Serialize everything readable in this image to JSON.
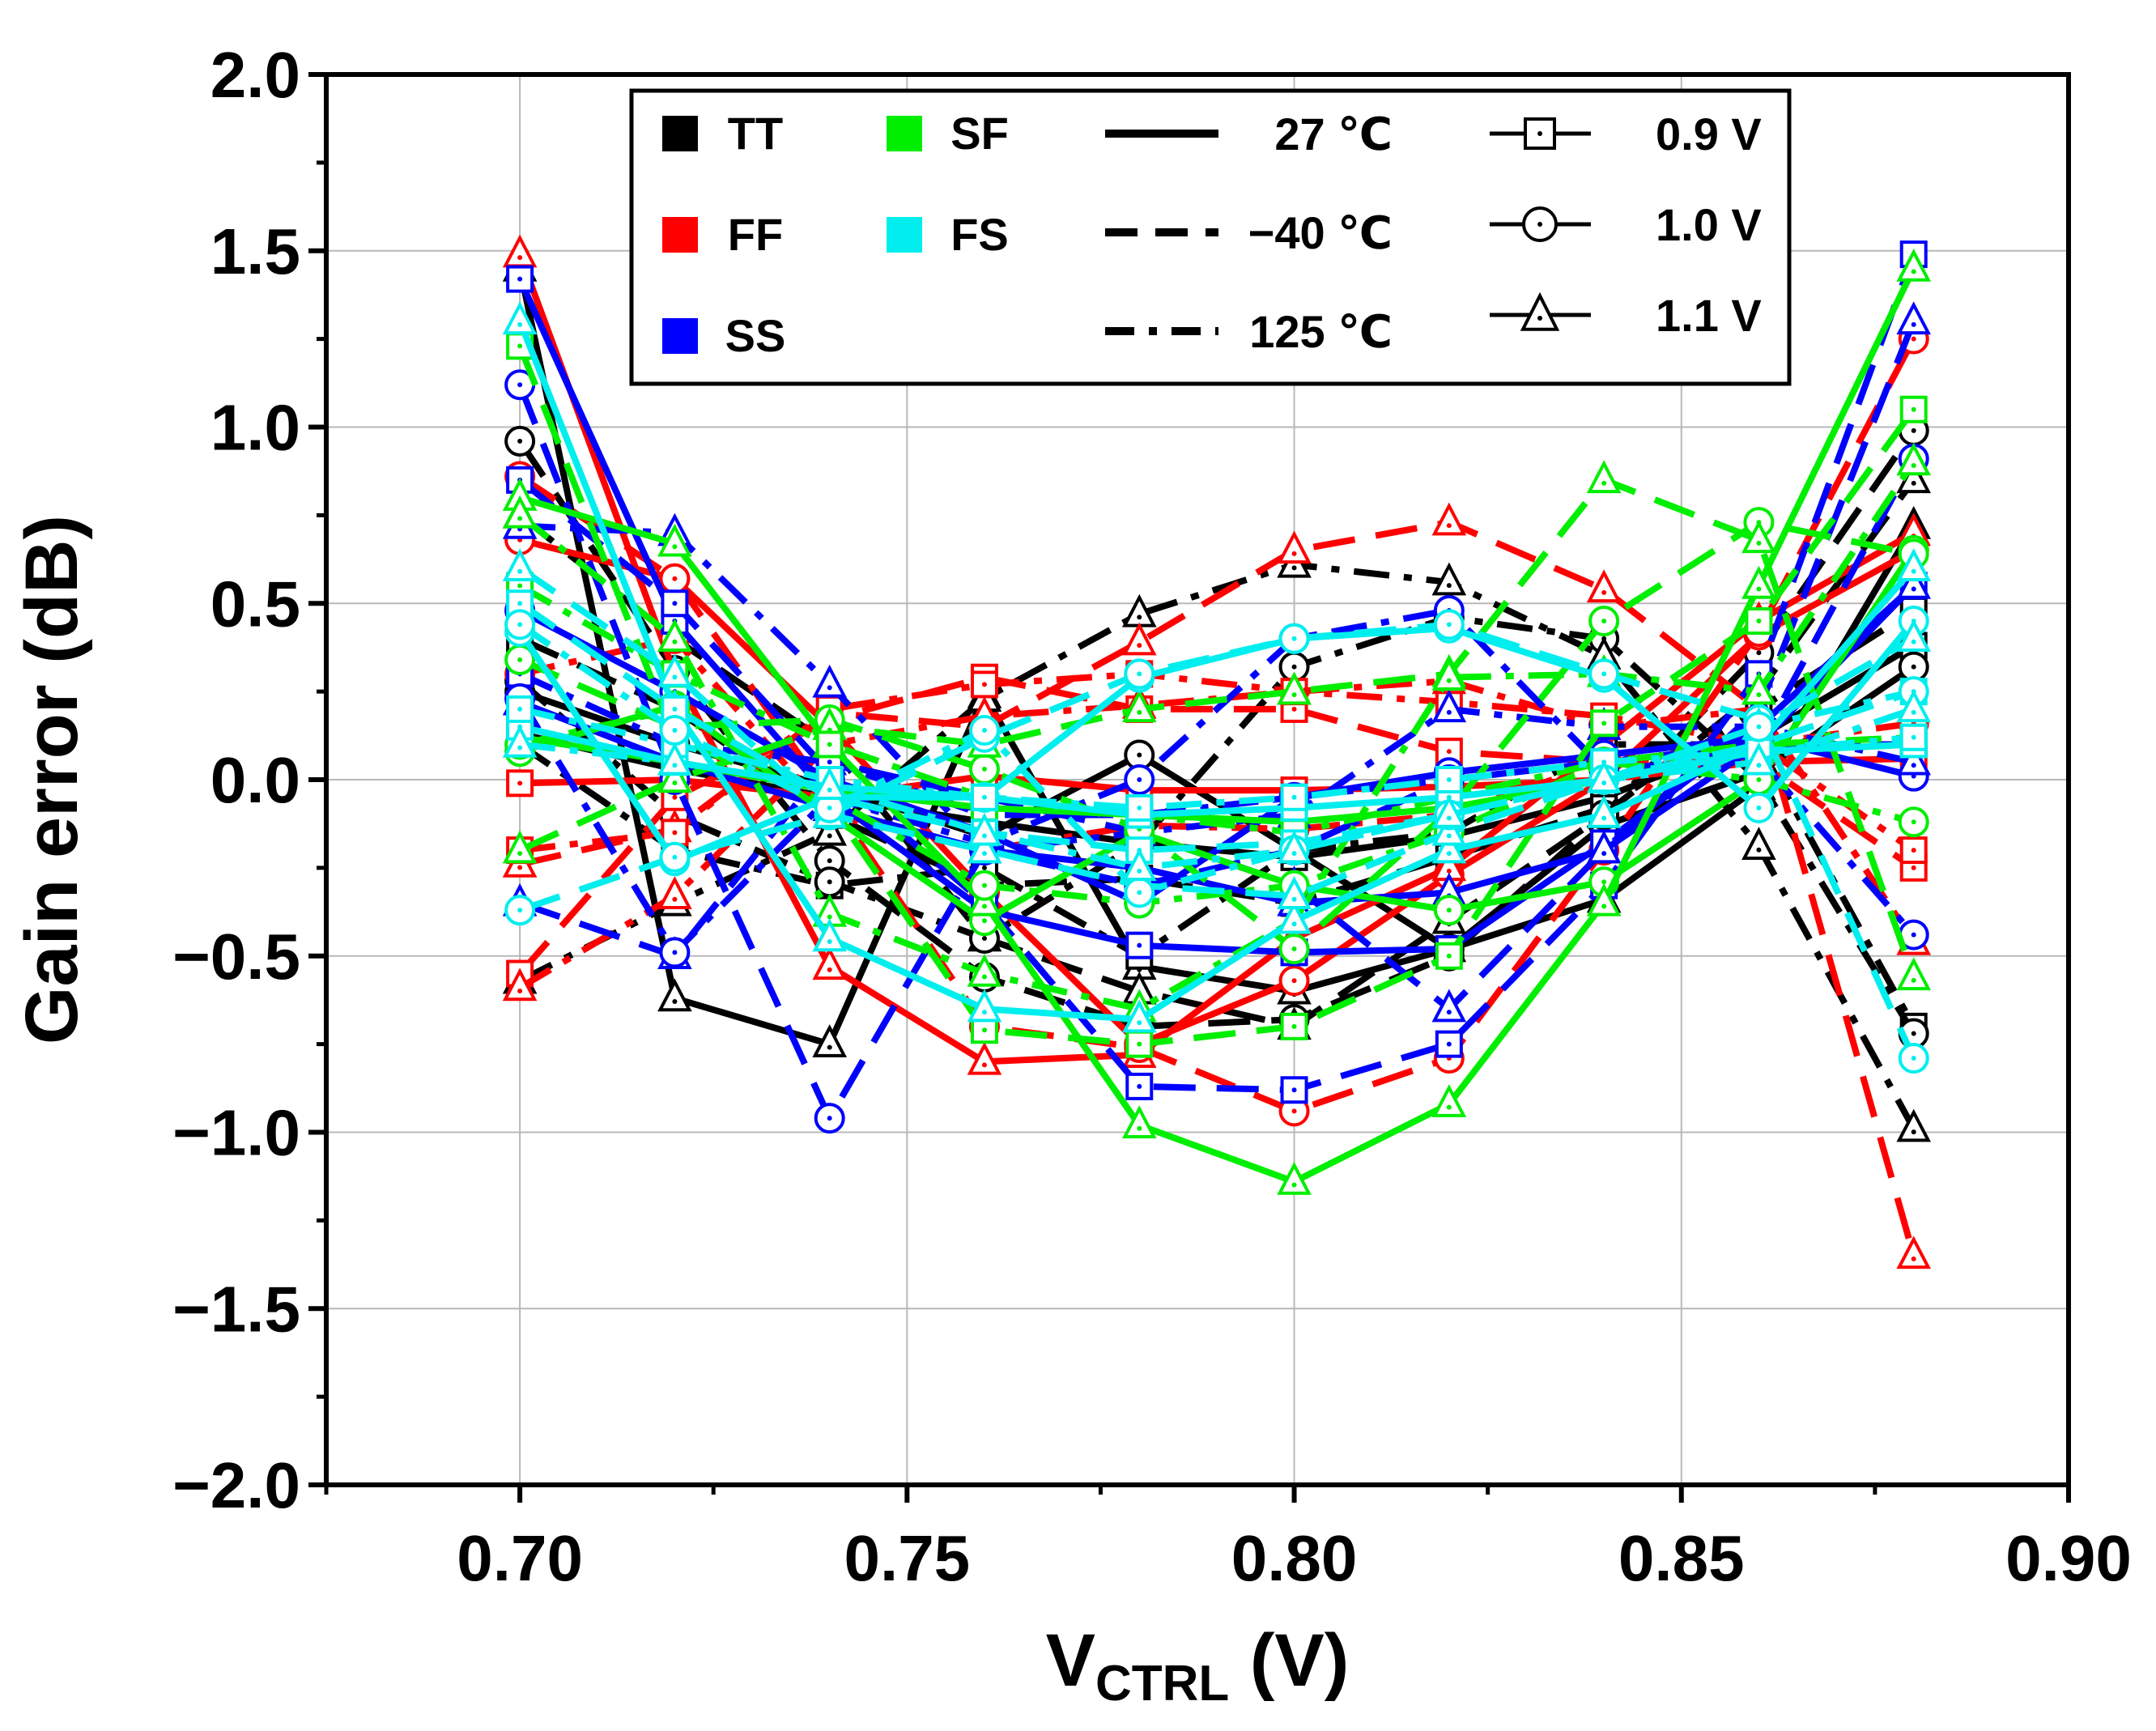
{
  "chart_data": {
    "type": "line",
    "xlabel": "V",
    "xlabel_sub": "CTRL",
    "xlabel_unit": " (V)",
    "ylabel": "Gain error (dB)",
    "xlim": [
      0.675,
      0.9
    ],
    "ylim": [
      -2.0,
      2.0
    ],
    "x_ticks": [
      0.7,
      0.75,
      0.8,
      0.85,
      0.9
    ],
    "x_tick_labels": [
      "0.70",
      "0.75",
      "0.80",
      "0.85",
      "0.90"
    ],
    "y_ticks": [
      2.0,
      1.5,
      1.0,
      0.5,
      0.0,
      -0.5,
      -1.0,
      -1.5,
      -2.0
    ],
    "y_tick_labels": [
      "2.0",
      "1.5",
      "1.0",
      "0.5",
      "0.0",
      "−0.5",
      "−1.0",
      "−1.5",
      "−2.0"
    ],
    "grid": true,
    "x": [
      0.7,
      0.72,
      0.74,
      0.76,
      0.78,
      0.8,
      0.82,
      0.84,
      0.86,
      0.88
    ],
    "colors": {
      "TT": "#000000",
      "FF": "#ff0000",
      "SS": "#0000ff",
      "SF": "#00ee00",
      "FS": "#00eeee"
    },
    "legend": {
      "position": "top",
      "corners": [
        {
          "label": "TT",
          "color": "#000000"
        },
        {
          "label": "FF",
          "color": "#ff0000"
        },
        {
          "label": "SS",
          "color": "#0000ff"
        },
        {
          "label": "SF",
          "color": "#00ee00"
        },
        {
          "label": "FS",
          "color": "#00eeee"
        }
      ],
      "temperatures": [
        {
          "label": "27 ℃",
          "style": "solid"
        },
        {
          "label": "−40 ℃",
          "style": "dash"
        },
        {
          "label": "125 ℃",
          "style": "dashdot"
        }
      ],
      "voltages": [
        {
          "label": "0.9 V",
          "marker": "square"
        },
        {
          "label": "1.0 V",
          "marker": "circle"
        },
        {
          "label": "1.1 V",
          "marker": "triangle"
        }
      ]
    },
    "series": [
      {
        "name": "TT 27 ℃ 0.9 V",
        "corner": "TT",
        "temp": "27",
        "voltage": "0.9",
        "values": [
          0.13,
          0.03,
          -0.05,
          -0.12,
          -0.18,
          -0.22,
          -0.16,
          -0.05,
          0.12,
          0.38
        ]
      },
      {
        "name": "TT 27 ℃ 1.0 V",
        "corner": "TT",
        "temp": "27",
        "voltage": "1.0",
        "values": [
          0.25,
          0.1,
          -0.02,
          -0.16,
          0.07,
          -0.2,
          -0.48,
          -0.13,
          0.02,
          0.32
        ]
      },
      {
        "name": "TT 27 ℃ 1.1 V",
        "corner": "TT",
        "temp": "27",
        "voltage": "1.1",
        "values": [
          1.45,
          -0.62,
          -0.75,
          0.24,
          -0.53,
          -0.6,
          -0.48,
          -0.34,
          -0.02,
          0.72
        ]
      },
      {
        "name": "TT -40 ℃ 0.9 V",
        "corner": "TT",
        "temp": "-40",
        "voltage": "0.9",
        "values": [
          0.4,
          0.2,
          -0.1,
          -0.3,
          -0.28,
          -0.35,
          -0.22,
          -0.08,
          0.2,
          0.48
        ]
      },
      {
        "name": "TT -40 ℃ 1.0 V",
        "corner": "TT",
        "temp": "-40",
        "voltage": "1.0",
        "values": [
          0.96,
          0.31,
          -0.23,
          -0.56,
          -0.7,
          -0.68,
          -0.5,
          -0.1,
          0.36,
          0.99
        ]
      },
      {
        "name": "TT -40 ℃ 1.1 V",
        "corner": "TT",
        "temp": "-40",
        "voltage": "1.1",
        "values": [
          0.75,
          0.4,
          0.1,
          -0.45,
          -0.6,
          -0.7,
          -0.4,
          -0.1,
          0.25,
          0.85
        ]
      },
      {
        "name": "TT 125 ℃ 0.9 V",
        "corner": "TT",
        "temp": "125",
        "voltage": "0.9",
        "values": [
          0.1,
          -0.2,
          -0.3,
          -0.25,
          -0.5,
          -0.2,
          -0.15,
          0.1,
          0.1,
          -0.7
        ]
      },
      {
        "name": "TT 125 ℃ 1.0 V",
        "corner": "TT",
        "temp": "125",
        "voltage": "1.0",
        "values": [
          0.28,
          -0.1,
          -0.29,
          -0.45,
          -0.18,
          0.32,
          0.46,
          0.4,
          0.0,
          -0.72
        ]
      },
      {
        "name": "TT 125 ℃ 1.1 V",
        "corner": "TT",
        "temp": "125",
        "voltage": "1.1",
        "values": [
          -0.57,
          -0.35,
          -0.15,
          0.23,
          0.47,
          0.61,
          0.56,
          0.35,
          -0.19,
          -0.99
        ]
      },
      {
        "name": "FF 27 ℃ 0.9 V",
        "corner": "FF",
        "temp": "27",
        "voltage": "0.9",
        "values": [
          -0.01,
          0.0,
          -0.05,
          0.01,
          -0.03,
          -0.03,
          -0.02,
          0.0,
          0.05,
          0.06
        ]
      },
      {
        "name": "FF 27 ℃ 1.0 V",
        "corner": "FF",
        "temp": "27",
        "voltage": "1.0",
        "values": [
          0.68,
          0.57,
          0.15,
          -0.32,
          -0.75,
          -0.57,
          -0.27,
          0.0,
          0.41,
          0.65
        ]
      },
      {
        "name": "FF 27 ℃ 1.1 V",
        "corner": "FF",
        "temp": "27",
        "voltage": "1.1",
        "values": [
          1.49,
          0.3,
          -0.53,
          -0.8,
          -0.78,
          -0.45,
          -0.25,
          0.1,
          0.45,
          0.7
        ]
      },
      {
        "name": "FF -40 ℃ 0.9 V",
        "corner": "FF",
        "temp": "-40",
        "voltage": "0.9",
        "values": [
          -0.55,
          -0.05,
          0.17,
          0.29,
          0.2,
          0.2,
          0.08,
          0.05,
          0.05,
          -0.25
        ]
      },
      {
        "name": "FF -40 ℃ 1.0 V",
        "corner": "FF",
        "temp": "-40",
        "voltage": "1.0",
        "values": [
          0.86,
          0.57,
          -0.05,
          -0.7,
          -0.76,
          -0.94,
          -0.79,
          -0.2,
          0.42,
          1.25
        ]
      },
      {
        "name": "FF -40 ℃ 1.1 V",
        "corner": "FF",
        "temp": "-40",
        "voltage": "1.1",
        "values": [
          -0.24,
          -0.14,
          0.19,
          0.15,
          0.39,
          0.65,
          0.73,
          0.54,
          0.2,
          -1.35
        ]
      },
      {
        "name": "FF 125 ℃ 0.9 V",
        "corner": "FF",
        "temp": "125",
        "voltage": "0.9",
        "values": [
          -0.2,
          -0.15,
          0.2,
          0.27,
          0.3,
          0.25,
          0.22,
          0.18,
          0.1,
          -0.2
        ]
      },
      {
        "name": "FF 125 ℃ 1.0 V",
        "corner": "FF",
        "temp": "125",
        "voltage": "1.0",
        "values": [
          0.3,
          0.4,
          -0.1,
          -0.2,
          -0.13,
          -0.14,
          -0.1,
          0.05,
          0.1,
          0.16
        ]
      },
      {
        "name": "FF 125 ℃ 1.1 V",
        "corner": "FF",
        "temp": "125",
        "voltage": "1.1",
        "values": [
          -0.59,
          -0.33,
          0.1,
          0.18,
          0.21,
          0.25,
          0.28,
          0.15,
          0.2,
          -0.46
        ]
      },
      {
        "name": "SS 27 ℃ 0.9 V",
        "corner": "SS",
        "temp": "27",
        "voltage": "0.9",
        "values": [
          1.42,
          0.45,
          -0.05,
          -0.37,
          -0.47,
          -0.49,
          -0.48,
          -0.18,
          0.15,
          0.55
        ]
      },
      {
        "name": "SS 27 ℃ 1.0 V",
        "corner": "SS",
        "temp": "27",
        "voltage": "1.0",
        "values": [
          0.48,
          0.25,
          0.0,
          -0.15,
          -0.35,
          -0.05,
          0.02,
          0.07,
          0.12,
          0.01
        ]
      },
      {
        "name": "SS 27 ℃ 1.1 V",
        "corner": "SS",
        "temp": "27",
        "voltage": "1.1",
        "values": [
          0.22,
          0.05,
          -0.08,
          -0.2,
          -0.25,
          -0.35,
          -0.32,
          -0.2,
          0.1,
          0.55
        ]
      },
      {
        "name": "SS -40 ℃ 0.9 V",
        "corner": "SS",
        "temp": "-40",
        "voltage": "0.9",
        "values": [
          0.85,
          0.5,
          0.02,
          -0.35,
          -0.87,
          -0.88,
          -0.75,
          -0.3,
          0.3,
          1.49
        ]
      },
      {
        "name": "SS -40 ℃ 1.0 V",
        "corner": "SS",
        "temp": "-40",
        "voltage": "1.0",
        "values": [
          1.12,
          0.0,
          -0.96,
          -0.2,
          -0.3,
          -0.2,
          0.0,
          0.05,
          0.1,
          0.91
        ]
      },
      {
        "name": "SS -40 ℃ 1.1 V",
        "corner": "SS",
        "temp": "-40",
        "voltage": "1.1",
        "values": [
          -0.35,
          -0.5,
          0.05,
          -0.05,
          -0.15,
          -0.3,
          -0.65,
          -0.2,
          0.2,
          1.3
        ]
      },
      {
        "name": "SS 125 ℃ 0.9 V",
        "corner": "SS",
        "temp": "125",
        "voltage": "0.9",
        "values": [
          0.3,
          0.1,
          0.05,
          -0.1,
          -0.1,
          -0.05,
          0.0,
          0.05,
          0.1,
          0.1
        ]
      },
      {
        "name": "SS 125 ℃ 1.0 V",
        "corner": "SS",
        "temp": "125",
        "voltage": "1.0",
        "values": [
          0.23,
          -0.49,
          -0.05,
          -0.18,
          0.0,
          0.4,
          0.48,
          0.03,
          0.06,
          -0.44
        ]
      },
      {
        "name": "SS 125 ℃ 1.1 V",
        "corner": "SS",
        "temp": "125",
        "voltage": "1.1",
        "values": [
          0.72,
          0.7,
          0.27,
          -0.2,
          -0.15,
          -0.1,
          0.2,
          0.15,
          0.15,
          0.05
        ]
      },
      {
        "name": "SF 27 ℃ 0.9 V",
        "corner": "SF",
        "temp": "27",
        "voltage": "0.9",
        "values": [
          0.12,
          0.05,
          -0.03,
          -0.08,
          -0.1,
          -0.12,
          -0.08,
          0.0,
          0.08,
          0.1
        ]
      },
      {
        "name": "SF 27 ℃ 1.0 V",
        "corner": "SF",
        "temp": "27",
        "voltage": "1.0",
        "values": [
          0.08,
          0.21,
          -0.1,
          -0.4,
          -0.15,
          -0.3,
          -0.37,
          -0.29,
          0.0,
          0.65
        ]
      },
      {
        "name": "SF 27 ℃ 1.1 V",
        "corner": "SF",
        "temp": "27",
        "voltage": "1.1",
        "values": [
          0.8,
          0.67,
          0.1,
          -0.35,
          -0.98,
          -1.14,
          -0.92,
          -0.35,
          0.55,
          1.45
        ]
      },
      {
        "name": "SF -40 ℃ 0.9 V",
        "corner": "SF",
        "temp": "-40",
        "voltage": "0.9",
        "values": [
          1.23,
          0.12,
          -0.07,
          -0.71,
          -0.75,
          -0.7,
          -0.5,
          0.16,
          0.45,
          1.05
        ]
      },
      {
        "name": "SF -40 ℃ 1.0 V",
        "corner": "SF",
        "temp": "-40",
        "voltage": "1.0",
        "values": [
          0.34,
          0.15,
          0.17,
          0.03,
          -0.14,
          -0.48,
          -0.09,
          0.45,
          0.73,
          0.64
        ]
      },
      {
        "name": "SF -40 ℃ 1.1 V",
        "corner": "SF",
        "temp": "-40",
        "voltage": "1.1",
        "values": [
          -0.2,
          0.0,
          0.15,
          0.1,
          0.2,
          0.25,
          0.3,
          0.85,
          0.68,
          -0.56
        ]
      },
      {
        "name": "SF 125 ℃ 0.9 V",
        "corner": "SF",
        "temp": "125",
        "voltage": "0.9",
        "values": [
          0.55,
          0.3,
          0.1,
          -0.05,
          -0.1,
          -0.15,
          -0.05,
          0.05,
          0.1,
          0.12
        ]
      },
      {
        "name": "SF 125 ℃ 1.0 V",
        "corner": "SF",
        "temp": "125",
        "voltage": "1.0",
        "values": [
          0.1,
          0.2,
          -0.05,
          -0.3,
          -0.35,
          -0.3,
          -0.15,
          0.05,
          0.0,
          -0.12
        ]
      },
      {
        "name": "SF 125 ℃ 1.1 V",
        "corner": "SF",
        "temp": "125",
        "voltage": "1.1",
        "values": [
          0.75,
          0.4,
          -0.38,
          -0.55,
          -0.65,
          -0.4,
          0.29,
          0.3,
          0.25,
          0.9
        ]
      },
      {
        "name": "FS 27 ℃ 0.9 V",
        "corner": "FS",
        "temp": "27",
        "voltage": "0.9",
        "values": [
          0.15,
          0.05,
          -0.02,
          -0.05,
          -0.1,
          -0.08,
          -0.05,
          0.0,
          0.08,
          0.1
        ]
      },
      {
        "name": "FS 27 ℃ 1.0 V",
        "corner": "FS",
        "temp": "27",
        "voltage": "1.0",
        "values": [
          0.42,
          -0.23,
          -0.05,
          -0.05,
          0.29,
          0.4,
          0.43,
          0.29,
          -0.08,
          0.45
        ]
      },
      {
        "name": "FS 27 ℃ 1.1 V",
        "corner": "FS",
        "temp": "27",
        "voltage": "1.1",
        "values": [
          1.3,
          0.2,
          -0.45,
          -0.65,
          -0.68,
          -0.4,
          -0.2,
          -0.1,
          0.1,
          0.6
        ]
      },
      {
        "name": "FS -40 ℃ 0.9 V",
        "corner": "FS",
        "temp": "-40",
        "voltage": "0.9",
        "values": [
          0.5,
          0.2,
          -0.05,
          -0.15,
          -0.2,
          -0.18,
          -0.1,
          0.0,
          0.1,
          0.25
        ]
      },
      {
        "name": "FS -40 ℃ 1.0 V",
        "corner": "FS",
        "temp": "-40",
        "voltage": "1.0",
        "values": [
          -0.37,
          -0.22,
          -0.1,
          0.12,
          0.3,
          0.4,
          0.44,
          0.3,
          0.17,
          -0.79
        ]
      },
      {
        "name": "FS -40 ℃ 1.1 V",
        "corner": "FS",
        "temp": "-40",
        "voltage": "1.1",
        "values": [
          0.6,
          0.3,
          -0.1,
          -0.2,
          -0.3,
          -0.33,
          -0.15,
          0.0,
          0.15,
          0.4
        ]
      },
      {
        "name": "FS 125 ℃ 0.9 V",
        "corner": "FS",
        "temp": "125",
        "voltage": "0.9",
        "values": [
          0.2,
          0.1,
          0.0,
          -0.05,
          -0.08,
          -0.05,
          0.0,
          0.05,
          0.08,
          0.12
        ]
      },
      {
        "name": "FS 125 ℃ 1.0 V",
        "corner": "FS",
        "temp": "125",
        "voltage": "1.0",
        "values": [
          0.44,
          0.14,
          -0.08,
          0.14,
          -0.32,
          -0.2,
          -0.1,
          0.0,
          0.15,
          0.25
        ]
      },
      {
        "name": "FS 125 ℃ 1.1 V",
        "corner": "FS",
        "temp": "125",
        "voltage": "1.1",
        "values": [
          0.1,
          0.05,
          -0.02,
          -0.15,
          -0.25,
          -0.2,
          -0.1,
          0.0,
          0.05,
          0.2
        ]
      }
    ]
  }
}
